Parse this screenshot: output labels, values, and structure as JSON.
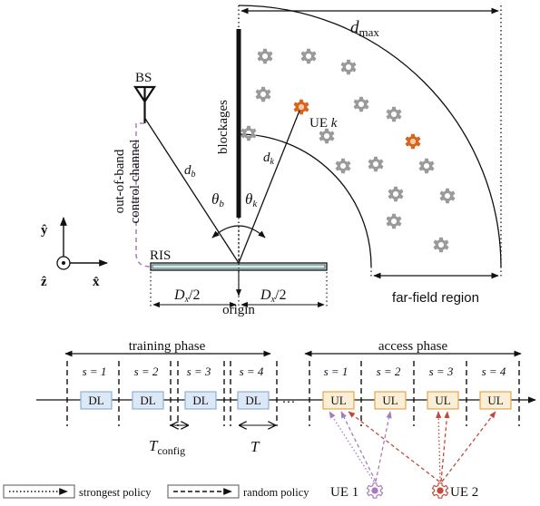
{
  "top": {
    "dmax": "d",
    "dmax_sub": "max",
    "bs": "BS",
    "blockages": "blockages",
    "ue_k_main": "UE ",
    "ue_k_var": "k",
    "d_b": "d",
    "d_b_sub": "b",
    "d_k": "d",
    "d_k_sub": "k",
    "theta_b": "θ",
    "theta_b_sub": "b",
    "theta_k": "θ",
    "theta_k_sub": "k",
    "oob_line1": "out-of-band",
    "oob_line2": "control channel",
    "axis_y": "ŷ",
    "axis_x": "x̂",
    "axis_z": "ẑ",
    "ris": "RIS",
    "dx_left": "D",
    "dx_left_rest": "/2",
    "dx_right": "D",
    "dx_right_rest": "/2",
    "dx_sub": "x",
    "origin": "origin",
    "far_field": "far-field region"
  },
  "bottom": {
    "training_phase": "training phase",
    "access_phase": "access phase",
    "training_slots": [
      {
        "s": "s = 1",
        "block": "DL"
      },
      {
        "s": "s = 2",
        "block": "DL"
      },
      {
        "s": "s = 3",
        "block": "DL"
      },
      {
        "s": "s = 4",
        "block": "DL"
      }
    ],
    "access_slots": [
      {
        "s": "s = 1",
        "block": "UL"
      },
      {
        "s": "s = 2",
        "block": "UL"
      },
      {
        "s": "s = 3",
        "block": "UL"
      },
      {
        "s": "s = 4",
        "block": "UL"
      }
    ],
    "ellipsis": "···",
    "t_config": "T",
    "t_config_sub": "config",
    "t_slot": "T",
    "ue1": "UE 1",
    "ue2": "UE 2"
  },
  "legend": {
    "strongest": "strongest policy",
    "random": "random policy"
  },
  "colors": {
    "dl_fill": "#dce8f5",
    "dl_stroke": "#8fb0d6",
    "ul_fill": "#fbeed6",
    "ul_stroke": "#e0a94e",
    "ris_fill": "#cfecee",
    "ue_orange": "#d9641f",
    "ue1_purple": "#a77bc0",
    "ue2_red": "#c24a3a",
    "scatter_gray": "#9a9a9a",
    "oob_purple": "#a77bc0"
  }
}
